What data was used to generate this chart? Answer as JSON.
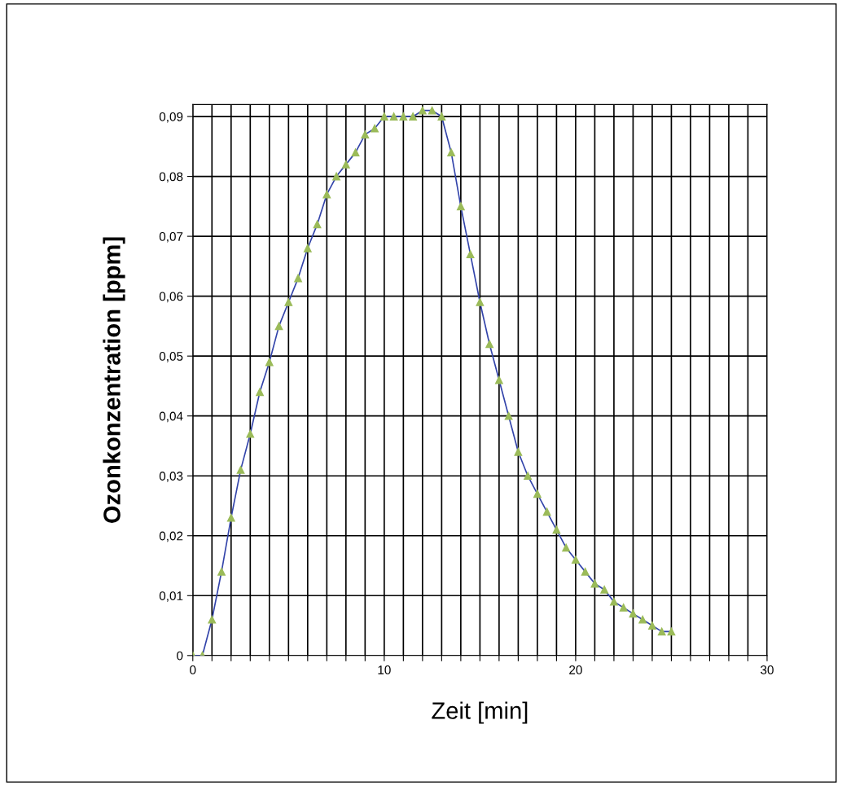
{
  "chart_data": {
    "type": "line",
    "xlabel": "Zeit [min]",
    "ylabel": "Ozonkonzentration [ppm]",
    "x": [
      0,
      0.5,
      1,
      1.5,
      2,
      2.5,
      3,
      3.5,
      4,
      4.5,
      5,
      5.5,
      6,
      6.5,
      7,
      7.5,
      8,
      8.5,
      9,
      9.5,
      10,
      10.5,
      11,
      11.5,
      12,
      12.5,
      13,
      13.5,
      14,
      14.5,
      15,
      15.5,
      16,
      16.5,
      17,
      17.5,
      18,
      18.5,
      19,
      19.5,
      20,
      20.5,
      21,
      21.5,
      22,
      22.5,
      23,
      23.5,
      24,
      24.5,
      25
    ],
    "series": [
      {
        "color": "#3344aa",
        "values": [
          0,
          0,
          0.006,
          0.014,
          0.023,
          0.031,
          0.037,
          0.044,
          0.049,
          0.055,
          0.059,
          0.063,
          0.068,
          0.072,
          0.077,
          0.08,
          0.082,
          0.084,
          0.087,
          0.088,
          0.09,
          0.09,
          0.09,
          0.09,
          0.091,
          0.091,
          0.09,
          0.084,
          0.075,
          0.067,
          0.059,
          0.052,
          0.046,
          0.04,
          0.034,
          0.03,
          0.027,
          0.024,
          0.021,
          0.018,
          0.016,
          0.014,
          0.012,
          0.011,
          0.009,
          0.008,
          0.007,
          0.006,
          0.005,
          0.004,
          0.004
        ]
      }
    ],
    "marker": "triangle",
    "xlim": [
      0,
      30
    ],
    "xticks": [
      0,
      {
        "value": 1,
        "label": null
      },
      {
        "value": 2,
        "label": null
      },
      {
        "value": 3,
        "label": null
      },
      {
        "value": 4,
        "label": null
      },
      {
        "value": 5,
        "label": null
      },
      {
        "value": 6,
        "label": null
      },
      {
        "value": 7,
        "label": null
      },
      {
        "value": 8,
        "label": null
      },
      {
        "value": 9,
        "label": null
      },
      10,
      {
        "value": 11,
        "label": null
      },
      {
        "value": 12,
        "label": null
      },
      {
        "value": 13,
        "label": null
      },
      {
        "value": 14,
        "label": null
      },
      {
        "value": 15,
        "label": null
      },
      {
        "value": 16,
        "label": null
      },
      {
        "value": 17,
        "label": null
      },
      {
        "value": 18,
        "label": null
      },
      {
        "value": 19,
        "label": null
      },
      20,
      {
        "value": 21,
        "label": null
      },
      {
        "value": 22,
        "label": null
      },
      {
        "value": 23,
        "label": null
      },
      {
        "value": 24,
        "label": null
      },
      {
        "value": 25,
        "label": null
      },
      {
        "value": 26,
        "label": null
      },
      {
        "value": 27,
        "label": null
      },
      {
        "value": 28,
        "label": null
      },
      {
        "value": 29,
        "label": null
      },
      30
    ],
    "ylim": [
      0,
      0.092
    ],
    "yticks": [
      {
        "value": 0,
        "label": "0"
      },
      {
        "value": 0.01,
        "label": "0,01"
      },
      {
        "value": 0.02,
        "label": "0,02"
      },
      {
        "value": 0.03,
        "label": "0,03"
      },
      {
        "value": 0.04,
        "label": "0,04"
      },
      {
        "value": 0.05,
        "label": "0,05"
      },
      {
        "value": 0.06,
        "label": "0,06"
      },
      {
        "value": 0.07,
        "label": "0,07"
      },
      {
        "value": 0.08,
        "label": "0,08"
      },
      {
        "value": 0.09,
        "label": "0,09"
      }
    ],
    "grid": true,
    "line_style": "solid",
    "legend": false
  }
}
